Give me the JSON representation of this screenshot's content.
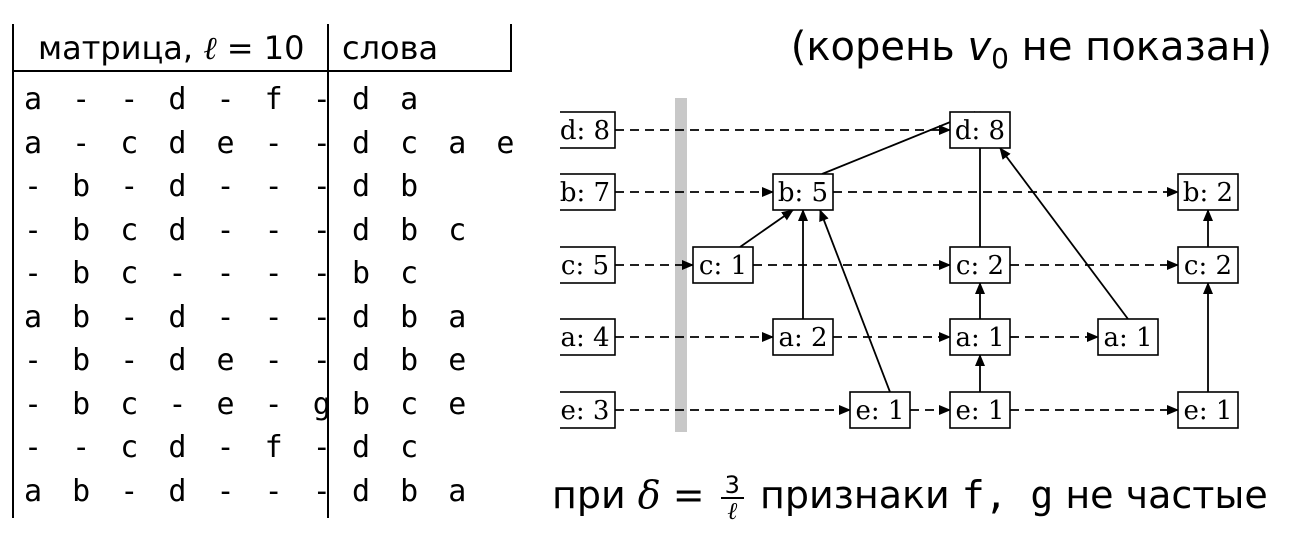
{
  "table": {
    "matrix_header": "матрица,",
    "ell_symbol": "ℓ",
    "ell_eq": "= 10",
    "words_header": "слова",
    "rows": [
      {
        "matrix": "a--d-f-",
        "words": "d a"
      },
      {
        "matrix": "a-cde--",
        "words": "d c a e"
      },
      {
        "matrix": "-b-d---",
        "words": "d b"
      },
      {
        "matrix": "-bcd---",
        "words": "d b c"
      },
      {
        "matrix": "-bc----",
        "words": "b c"
      },
      {
        "matrix": "ab-d---",
        "words": "d b a"
      },
      {
        "matrix": "-b-de--",
        "words": "d b e"
      },
      {
        "matrix": "-bc-e-g",
        "words": "b c e"
      },
      {
        "matrix": "--cd-f-",
        "words": "d c"
      },
      {
        "matrix": "ab-d---",
        "words": "d b a"
      }
    ]
  },
  "root_note": {
    "prefix": "(корень ",
    "v": "v",
    "sub": "0",
    "suffix": " не показан)"
  },
  "freq_note": {
    "prefix": "при ",
    "delta": "δ",
    "eq": " = ",
    "num": "3",
    "den": "ℓ",
    "mid": " признаки ",
    "features": "f, g",
    "suffix": " не частые"
  },
  "tree": {
    "headers": [
      {
        "id": "hd",
        "label": "d: 8"
      },
      {
        "id": "hb",
        "label": "b: 7"
      },
      {
        "id": "hc",
        "label": "c: 5"
      },
      {
        "id": "ha",
        "label": "a: 4"
      },
      {
        "id": "he",
        "label": "e: 3"
      }
    ],
    "nodes": [
      {
        "id": "d8",
        "label": "d: 8"
      },
      {
        "id": "b5",
        "label": "b: 5"
      },
      {
        "id": "b2",
        "label": "b: 2"
      },
      {
        "id": "c1",
        "label": "c: 1"
      },
      {
        "id": "c2a",
        "label": "c: 2"
      },
      {
        "id": "c2b",
        "label": "c: 2"
      },
      {
        "id": "a2",
        "label": "a: 2"
      },
      {
        "id": "a1a",
        "label": "a: 1"
      },
      {
        "id": "a1b",
        "label": "a: 1"
      },
      {
        "id": "e1a",
        "label": "e: 1"
      },
      {
        "id": "e1b",
        "label": "e: 1"
      },
      {
        "id": "e1c",
        "label": "e: 1"
      }
    ]
  }
}
